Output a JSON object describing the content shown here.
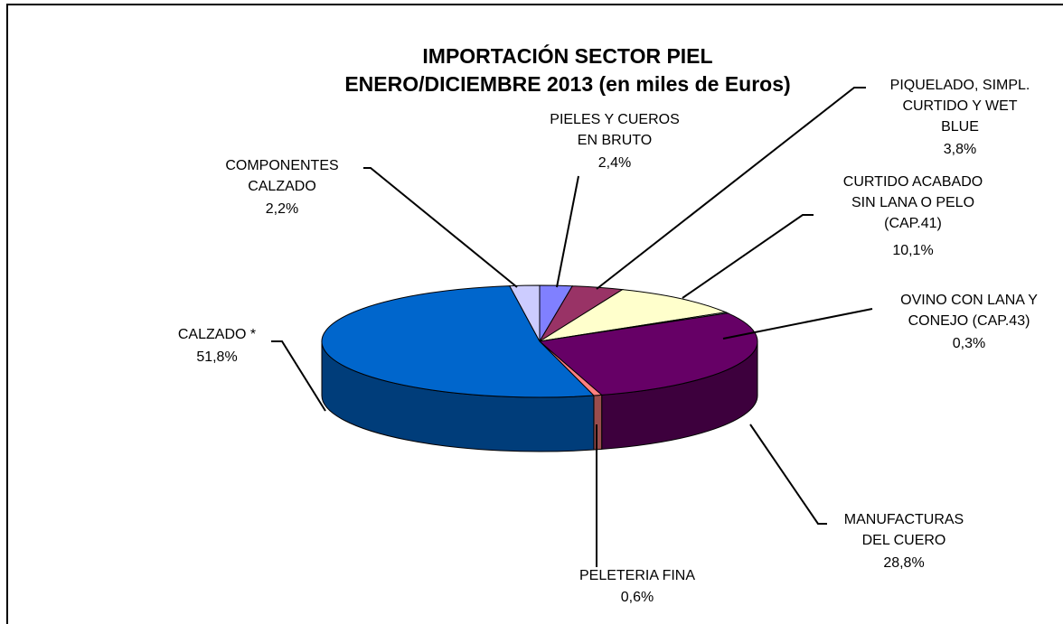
{
  "chart_data": {
    "type": "pie",
    "title": "IMPORTACIÓN SECTOR PIEL\nENERO/DICIEMBRE 2013 (en miles de Euros)",
    "categories": [
      "PIELES Y CUEROS\nEN BRUTO",
      "PIQUELADO, SIMPL.\nCURTIDO Y WET\nBLUE",
      "CURTIDO ACABADO\nSIN LANA O PELO\n(CAP.41)",
      "OVINO CON LANA Y\nCONEJO (CAP.43)",
      "MANUFACTURAS\nDEL CUERO",
      "PELETERIA FINA",
      "CALZADO  *",
      "COMPONENTES\nCALZADO"
    ],
    "values": [
      2.4,
      3.8,
      10.1,
      0.3,
      28.8,
      0.6,
      51.8,
      2.2
    ],
    "value_labels": [
      "2,4%",
      "3,8%",
      "10,1%",
      "0,3%",
      "28,8%",
      "0,6%",
      "51,8%",
      "2,2%"
    ],
    "colors": [
      "#8080ff",
      "#993366",
      "#ffffcc",
      "#ccffff",
      "#660066",
      "#ff8080",
      "#0066cc",
      "#ccccff"
    ]
  }
}
